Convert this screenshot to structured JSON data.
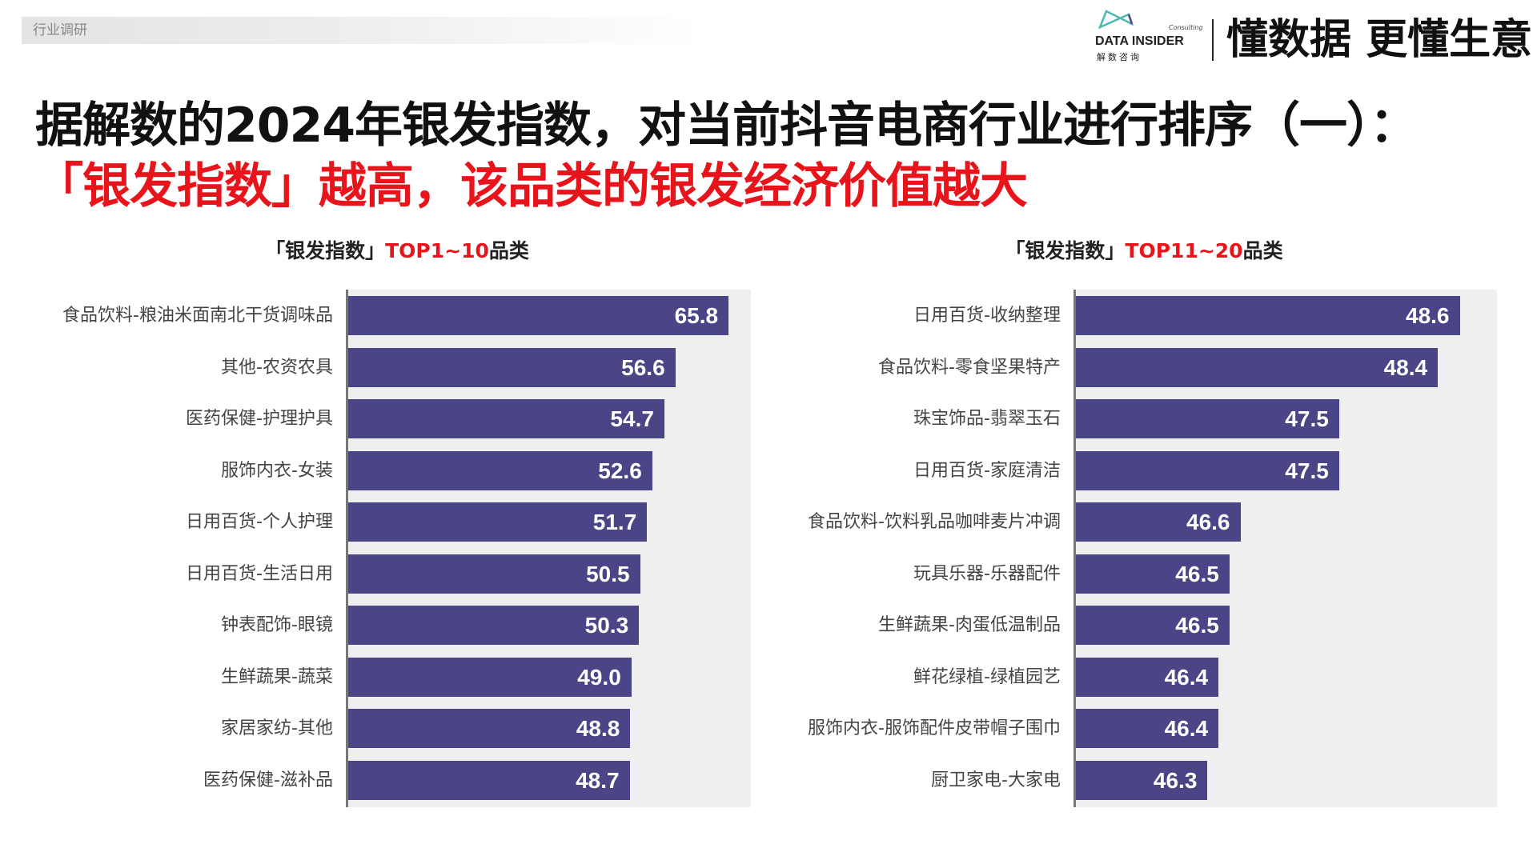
{
  "header": {
    "tag": "行业调研",
    "logo_text": "DATA INSIDER",
    "logo_cn": "解数咨询",
    "logo_sub": "Consulting",
    "slogan": "懂数据 更懂生意"
  },
  "title": {
    "line1": "据解数的2024年银发指数，对当前抖音电商行业进行排序（一）：",
    "line2": "「银发指数」越高，该品类的银发经济价值越大"
  },
  "colors": {
    "bar": "#4a4586",
    "background": "#efefef",
    "highlight": "#e8141b"
  },
  "chart_data": [
    {
      "type": "bar",
      "orientation": "horizontal",
      "title_prefix": "「银发指数」",
      "title_highlight": "TOP1~10",
      "title_suffix": "品类",
      "xlim": [
        0,
        70
      ],
      "categories": [
        "食品饮料-粮油米面南北干货调味品",
        "其他-农资农具",
        "医药保健-护理护具",
        "服饰内衣-女装",
        "日用百货-个人护理",
        "日用百货-生活日用",
        "钟表配饰-眼镜",
        "生鲜蔬果-蔬菜",
        "家居家纺-其他",
        "医药保健-滋补品"
      ],
      "values": [
        65.8,
        56.6,
        54.7,
        52.6,
        51.7,
        50.5,
        50.3,
        49.0,
        48.8,
        48.7
      ],
      "labels": [
        "65.8",
        "56.6",
        "54.7",
        "52.6",
        "51.7",
        "50.5",
        "50.3",
        "49.0",
        "48.8",
        "48.7"
      ]
    },
    {
      "type": "bar",
      "orientation": "horizontal",
      "title_prefix": "「银发指数」",
      "title_highlight": "TOP11~20",
      "title_suffix": "品类",
      "xlim": [
        45.1,
        49
      ],
      "categories": [
        "日用百货-收纳整理",
        "食品饮料-零食坚果特产",
        "珠宝饰品-翡翠玉石",
        "日用百货-家庭清洁",
        "食品饮料-饮料乳品咖啡麦片冲调",
        "玩具乐器-乐器配件",
        "生鲜蔬果-肉蛋低温制品",
        "鲜花绿植-绿植园艺",
        "服饰内衣-服饰配件皮带帽子围巾",
        "厨卫家电-大家电"
      ],
      "values": [
        48.6,
        48.4,
        47.5,
        47.5,
        46.6,
        46.5,
        46.5,
        46.4,
        46.4,
        46.3
      ],
      "labels": [
        "48.6",
        "48.4",
        "47.5",
        "47.5",
        "46.6",
        "46.5",
        "46.5",
        "46.4",
        "46.4",
        "46.3"
      ]
    }
  ]
}
